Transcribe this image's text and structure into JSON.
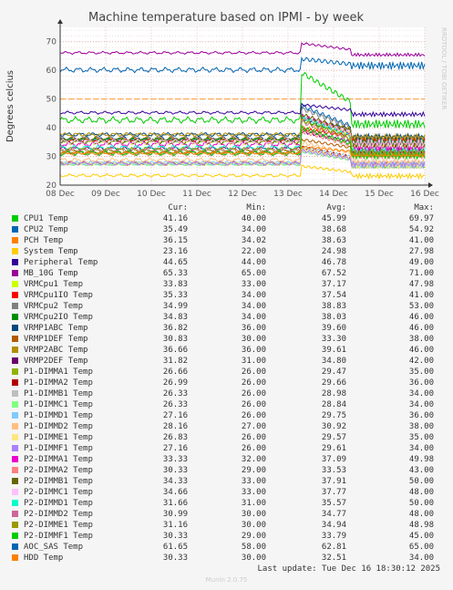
{
  "chart_data": {
    "type": "line",
    "title": "Machine temperature based on IPMI - by week",
    "ylabel": "Degrees celcius",
    "side_label": "RRDTOOL / TOBI OETIKER",
    "x_ticks": [
      "08 Dec",
      "09 Dec",
      "10 Dec",
      "11 Dec",
      "12 Dec",
      "13 Dec",
      "14 Dec",
      "15 Dec",
      "16 Dec"
    ],
    "y_ticks": [
      20,
      30,
      40,
      50,
      60,
      70
    ],
    "ylim": [
      20,
      75
    ],
    "warning_level": 50,
    "grid": true,
    "columns": {
      "cur": "Cur:",
      "min": "Min:",
      "avg": "Avg:",
      "max": "Max:"
    },
    "series": [
      {
        "name": "CPU1 Temp",
        "color": "#00cc00",
        "cur": "41.16",
        "min": "40.00",
        "avg": "45.99",
        "max": "69.97"
      },
      {
        "name": "CPU2 Temp",
        "color": "#0066b3",
        "cur": "35.49",
        "min": "34.00",
        "avg": "38.68",
        "max": "54.92"
      },
      {
        "name": "PCH Temp",
        "color": "#ff8000",
        "cur": "36.15",
        "min": "34.02",
        "avg": "38.63",
        "max": "41.00"
      },
      {
        "name": "System Temp",
        "color": "#ffcc00",
        "cur": "23.16",
        "min": "22.00",
        "avg": "24.98",
        "max": "27.98"
      },
      {
        "name": "Peripheral Temp",
        "color": "#330099",
        "cur": "44.65",
        "min": "44.00",
        "avg": "46.78",
        "max": "49.00"
      },
      {
        "name": "MB_10G Temp",
        "color": "#990099",
        "cur": "65.33",
        "min": "65.00",
        "avg": "67.52",
        "max": "71.00"
      },
      {
        "name": "VRMCpu1 Temp",
        "color": "#ccff00",
        "cur": "33.83",
        "min": "33.00",
        "avg": "37.17",
        "max": "47.98"
      },
      {
        "name": "VRMCpu1IO Temp",
        "color": "#ff0000",
        "cur": "35.33",
        "min": "34.00",
        "avg": "37.54",
        "max": "41.00"
      },
      {
        "name": "VRMCpu2 Temp",
        "color": "#808080",
        "cur": "34.99",
        "min": "34.00",
        "avg": "38.83",
        "max": "53.00"
      },
      {
        "name": "VRMCpu2IO Temp",
        "color": "#008f00",
        "cur": "34.83",
        "min": "34.00",
        "avg": "38.03",
        "max": "46.00"
      },
      {
        "name": "VRMP1ABC Temp",
        "color": "#00487d",
        "cur": "36.82",
        "min": "36.00",
        "avg": "39.60",
        "max": "46.00"
      },
      {
        "name": "VRMP1DEF Temp",
        "color": "#b35a00",
        "cur": "30.83",
        "min": "30.00",
        "avg": "33.30",
        "max": "38.00"
      },
      {
        "name": "VRMP2ABC Temp",
        "color": "#b38f00",
        "cur": "36.66",
        "min": "36.00",
        "avg": "39.61",
        "max": "46.00"
      },
      {
        "name": "VRMP2DEF Temp",
        "color": "#6b006b",
        "cur": "31.82",
        "min": "31.00",
        "avg": "34.80",
        "max": "42.00"
      },
      {
        "name": "P1-DIMMA1 Temp",
        "color": "#8fb300",
        "cur": "26.66",
        "min": "26.00",
        "avg": "29.47",
        "max": "35.00"
      },
      {
        "name": "P1-DIMMA2 Temp",
        "color": "#b30000",
        "cur": "26.99",
        "min": "26.00",
        "avg": "29.66",
        "max": "36.00"
      },
      {
        "name": "P1-DIMMB1 Temp",
        "color": "#bebebe",
        "cur": "26.33",
        "min": "26.00",
        "avg": "28.98",
        "max": "34.00"
      },
      {
        "name": "P1-DIMMC1 Temp",
        "color": "#80ff80",
        "cur": "26.33",
        "min": "26.00",
        "avg": "28.84",
        "max": "34.00"
      },
      {
        "name": "P1-DIMMD1 Temp",
        "color": "#80c9ff",
        "cur": "27.16",
        "min": "26.00",
        "avg": "29.75",
        "max": "36.00"
      },
      {
        "name": "P1-DIMMD2 Temp",
        "color": "#ffc080",
        "cur": "28.16",
        "min": "27.00",
        "avg": "30.92",
        "max": "38.00"
      },
      {
        "name": "P1-DIMME1 Temp",
        "color": "#ffe680",
        "cur": "26.83",
        "min": "26.00",
        "avg": "29.57",
        "max": "35.00"
      },
      {
        "name": "P1-DIMMF1 Temp",
        "color": "#aa80ff",
        "cur": "27.16",
        "min": "26.00",
        "avg": "29.61",
        "max": "34.00"
      },
      {
        "name": "P2-DIMMA1 Temp",
        "color": "#ee00cc",
        "cur": "33.33",
        "min": "32.00",
        "avg": "37.09",
        "max": "49.98"
      },
      {
        "name": "P2-DIMMA2 Temp",
        "color": "#ff8080",
        "cur": "30.33",
        "min": "29.00",
        "avg": "33.53",
        "max": "43.00"
      },
      {
        "name": "P2-DIMMB1 Temp",
        "color": "#666600",
        "cur": "34.33",
        "min": "33.00",
        "avg": "37.91",
        "max": "50.00"
      },
      {
        "name": "P2-DIMMC1 Temp",
        "color": "#ffbfff",
        "cur": "34.66",
        "min": "33.00",
        "avg": "37.77",
        "max": "48.00"
      },
      {
        "name": "P2-DIMMD1 Temp",
        "color": "#00ffcc",
        "cur": "31.66",
        "min": "31.00",
        "avg": "35.57",
        "max": "50.00"
      },
      {
        "name": "P2-DIMMD2 Temp",
        "color": "#cc6699",
        "cur": "30.99",
        "min": "30.00",
        "avg": "34.77",
        "max": "48.00"
      },
      {
        "name": "P2-DIMME1 Temp",
        "color": "#999900",
        "cur": "31.16",
        "min": "30.00",
        "avg": "34.94",
        "max": "48.98"
      },
      {
        "name": "P2-DIMMF1 Temp",
        "color": "#00cc00",
        "cur": "30.33",
        "min": "29.00",
        "avg": "33.79",
        "max": "45.00"
      },
      {
        "name": "AOC_SAS Temp",
        "color": "#0066b3",
        "cur": "61.65",
        "min": "58.00",
        "avg": "62.81",
        "max": "65.00"
      },
      {
        "name": "HDD Temp",
        "color": "#ff8000",
        "cur": "30.33",
        "min": "30.00",
        "avg": "32.51",
        "max": "34.00"
      }
    ]
  },
  "footer": {
    "last_update": "Last update: Tue Dec 16 18:30:12 2025",
    "munin": "Munin 2.0.75"
  }
}
